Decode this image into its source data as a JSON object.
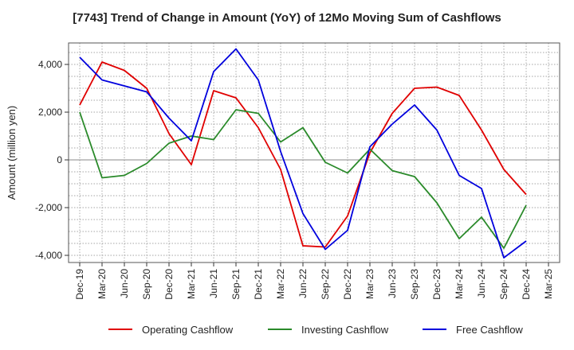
{
  "chart_data": {
    "type": "line",
    "title": "[7743]  Trend of Change in Amount (YoY) of 12Mo Moving Sum of Cashflows",
    "xlabel": "",
    "ylabel": "Amount (million yen)",
    "ylim": [
      -4300,
      4900
    ],
    "yticks": [
      -4000,
      -2000,
      0,
      2000,
      4000
    ],
    "ytick_labels": [
      "-4,000",
      "-2,000",
      "0",
      "2,000",
      "4,000"
    ],
    "grid": true,
    "legend_position": "bottom",
    "categories": [
      "Dec-19",
      "Mar-20",
      "Jun-20",
      "Sep-20",
      "Dec-20",
      "Mar-21",
      "Jun-21",
      "Sep-21",
      "Dec-21",
      "Mar-22",
      "Jun-22",
      "Sep-22",
      "Dec-22",
      "Mar-23",
      "Jun-23",
      "Sep-23",
      "Dec-23",
      "Mar-24",
      "Jun-24",
      "Sep-24",
      "Dec-24",
      "Mar-25"
    ],
    "series": [
      {
        "name": "Operating Cashflow",
        "color": "#e00000",
        "values": [
          2300,
          4100,
          3750,
          3000,
          1100,
          -200,
          2900,
          2600,
          1350,
          -400,
          -3600,
          -3650,
          -2350,
          300,
          1950,
          3000,
          3050,
          2700,
          1250,
          -400,
          -1450,
          null
        ]
      },
      {
        "name": "Investing Cashflow",
        "color": "#2a8a2a",
        "values": [
          2000,
          -750,
          -650,
          -150,
          700,
          1000,
          850,
          2100,
          1950,
          750,
          1350,
          -100,
          -550,
          450,
          -450,
          -700,
          -1800,
          -3300,
          -2400,
          -3700,
          -1900,
          null
        ]
      },
      {
        "name": "Free Cashflow",
        "color": "#0000dd",
        "values": [
          4300,
          3350,
          3100,
          2850,
          1750,
          800,
          3700,
          4650,
          3350,
          350,
          -2250,
          -3750,
          -2950,
          550,
          1500,
          2300,
          1250,
          -650,
          -1200,
          -4100,
          -3400,
          null
        ]
      }
    ]
  }
}
